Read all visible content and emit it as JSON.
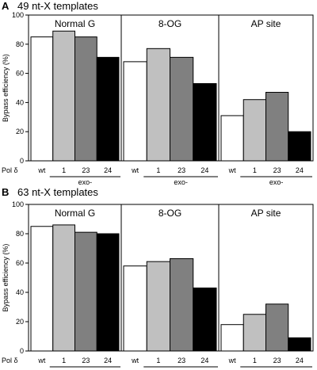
{
  "chart_data": [
    {
      "type": "bar",
      "panel_letter": "A",
      "title": "49 nt-X templates",
      "ylabel": "Bypass efficiency (%)",
      "ylim": [
        0,
        100
      ],
      "yticks": [
        0,
        20,
        40,
        60,
        80,
        100
      ],
      "row_label": "Pol δ",
      "group_sublabel": "exo-",
      "groups": [
        {
          "name": "Normal G",
          "categories": [
            "wt",
            "1",
            "23",
            "24"
          ],
          "values": [
            85,
            89,
            85,
            71
          ]
        },
        {
          "name": "8-OG",
          "categories": [
            "wt",
            "1",
            "23",
            "24"
          ],
          "values": [
            68,
            77,
            71,
            53
          ]
        },
        {
          "name": "AP site",
          "categories": [
            "wt",
            "1",
            "23",
            "24"
          ],
          "values": [
            31,
            42,
            47,
            20
          ]
        }
      ],
      "colors": [
        "#ffffff",
        "#c0c0c0",
        "#808080",
        "#000000"
      ]
    },
    {
      "type": "bar",
      "panel_letter": "B",
      "title": "63 nt-X templates",
      "ylabel": "Bypass efficiency (%)",
      "ylim": [
        0,
        100
      ],
      "yticks": [
        0,
        20,
        40,
        60,
        80,
        100
      ],
      "row_label": "Pol δ",
      "group_sublabel": "exo-",
      "groups": [
        {
          "name": "Normal G",
          "categories": [
            "wt",
            "1",
            "23",
            "24"
          ],
          "values": [
            85,
            86,
            81,
            80
          ]
        },
        {
          "name": "8-OG",
          "categories": [
            "wt",
            "1",
            "23",
            "24"
          ],
          "values": [
            58,
            61,
            63,
            43
          ]
        },
        {
          "name": "AP site",
          "categories": [
            "wt",
            "1",
            "23",
            "24"
          ],
          "values": [
            18,
            25,
            32,
            9
          ]
        }
      ],
      "colors": [
        "#ffffff",
        "#c0c0c0",
        "#808080",
        "#000000"
      ]
    }
  ]
}
